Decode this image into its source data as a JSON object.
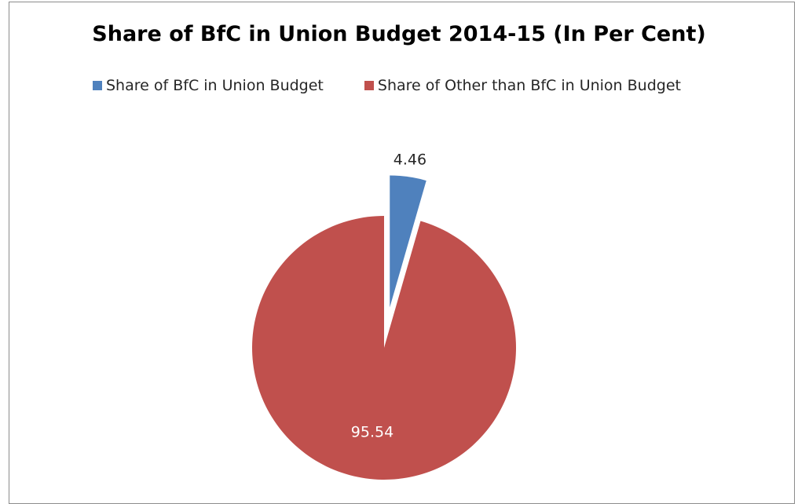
{
  "chart_data": {
    "type": "pie",
    "title": "Share of BfC in Union Budget 2014-15 (In Per Cent)",
    "series": [
      {
        "name": "Share of BfC in Union Budget",
        "value": 4.46,
        "label": "4.46",
        "color": "#4f81bd",
        "exploded": true
      },
      {
        "name": "Share of Other than BfC in Union Budget",
        "value": 95.54,
        "label": "95.54",
        "color": "#c0504d",
        "exploded": false
      }
    ],
    "legend_position": "top"
  }
}
